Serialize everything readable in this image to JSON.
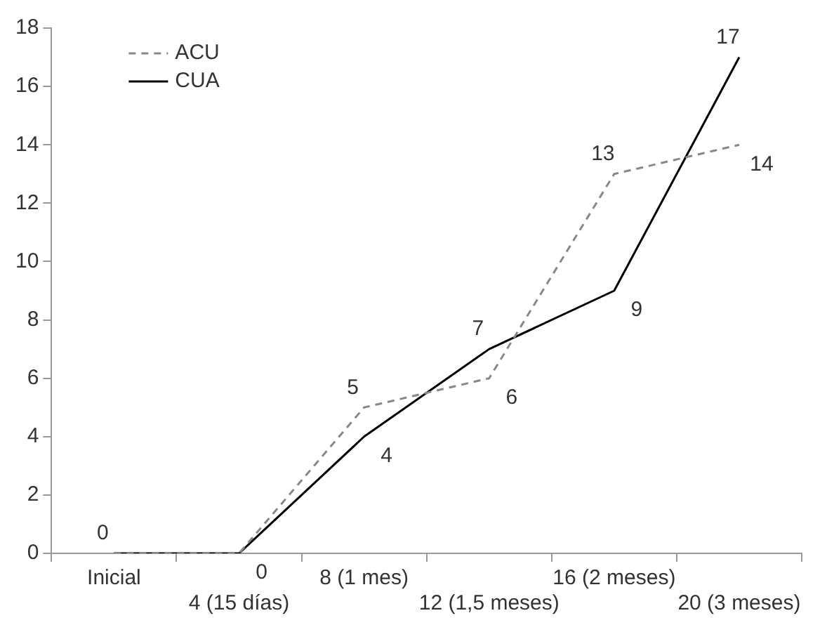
{
  "chart_data": {
    "type": "line",
    "categories": [
      "Inicial",
      "4 (15 días)",
      "8 (1 mes)",
      "12 (1,5 meses)",
      "16 (2 meses)",
      "20 (3 meses)"
    ],
    "series": [
      {
        "name": "ACU",
        "color": "#888888",
        "line_style": "dashed",
        "values": [
          0,
          0,
          5,
          6,
          13,
          14
        ],
        "value_labels": [
          "0",
          null,
          "5",
          "6",
          "13",
          "14"
        ]
      },
      {
        "name": "CUA",
        "color": "#000000",
        "line_style": "solid",
        "values": [
          0,
          0,
          4,
          7,
          9,
          17
        ],
        "value_labels": [
          null,
          "0",
          "4",
          "7",
          "9",
          "17"
        ]
      }
    ],
    "ylim": [
      0,
      18
    ],
    "yticks": [
      0,
      2,
      4,
      6,
      8,
      10,
      12,
      14,
      16,
      18
    ],
    "grid": false,
    "legend": "top left",
    "marker": "none"
  }
}
